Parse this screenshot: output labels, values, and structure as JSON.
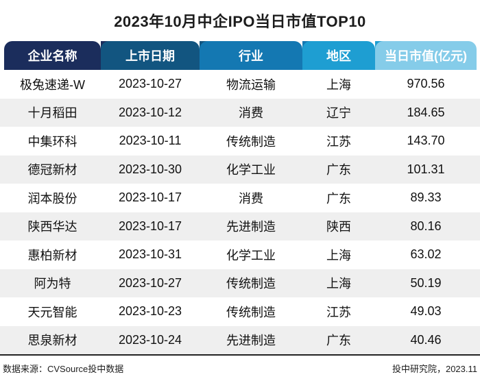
{
  "title": "2023年10月中企IPO当日市值TOP10",
  "chart_data": {
    "type": "table",
    "title": "2023年10月中企IPO当日市值TOP10",
    "columns": [
      {
        "label": "企业名称",
        "color": "#1b2d5c"
      },
      {
        "label": "上市日期",
        "color": "#125580"
      },
      {
        "label": "行业",
        "color": "#1478b2"
      },
      {
        "label": "地区",
        "color": "#1e9ed2"
      },
      {
        "label": "当日市值(亿元)",
        "color": "#85cce9"
      }
    ],
    "rows": [
      [
        "极兔速递-W",
        "2023-10-27",
        "物流运输",
        "上海",
        "970.56"
      ],
      [
        "十月稻田",
        "2023-10-12",
        "消费",
        "辽宁",
        "184.65"
      ],
      [
        "中集环科",
        "2023-10-11",
        "传统制造",
        "江苏",
        "143.70"
      ],
      [
        "德冠新材",
        "2023-10-30",
        "化学工业",
        "广东",
        "101.31"
      ],
      [
        "润本股份",
        "2023-10-17",
        "消费",
        "广东",
        "89.33"
      ],
      [
        "陕西华达",
        "2023-10-17",
        "先进制造",
        "陕西",
        "80.16"
      ],
      [
        "惠柏新材",
        "2023-10-31",
        "化学工业",
        "上海",
        "63.02"
      ],
      [
        "阿为特",
        "2023-10-27",
        "传统制造",
        "上海",
        "50.19"
      ],
      [
        "天元智能",
        "2023-10-23",
        "传统制造",
        "江苏",
        "49.03"
      ],
      [
        "思泉新材",
        "2023-10-24",
        "先进制造",
        "广东",
        "40.46"
      ]
    ],
    "stripe_color": "#efefef",
    "values_unit": "亿元"
  },
  "footer": {
    "source": "数据来源：CVSource投中数据",
    "credit": "投中研究院，2023.11"
  }
}
